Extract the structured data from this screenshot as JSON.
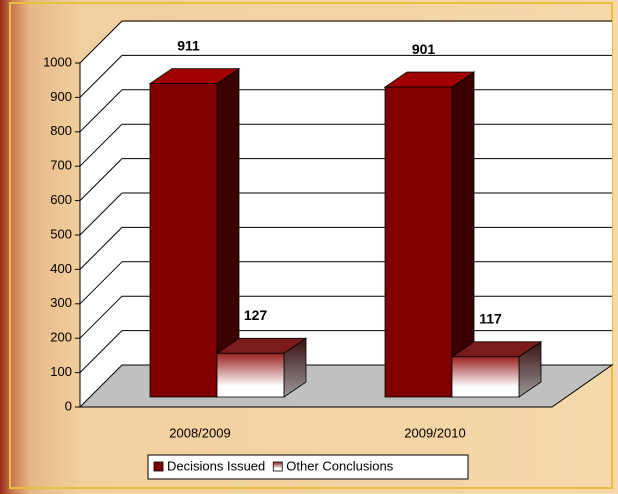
{
  "chart_data": {
    "type": "bar",
    "categories": [
      "2008/2009",
      "2009/2010"
    ],
    "series": [
      {
        "name": "Decisions Issued",
        "color": "#800000",
        "values": [
          911,
          901
        ]
      },
      {
        "name": "Other Conclusions",
        "color": "#ffffff",
        "values": [
          127,
          117
        ]
      }
    ],
    "ylim": [
      0,
      1000
    ],
    "yticks": [
      0,
      100,
      200,
      300,
      400,
      500,
      600,
      700,
      800,
      900,
      1000
    ],
    "grid": true,
    "legend": "bottom"
  }
}
